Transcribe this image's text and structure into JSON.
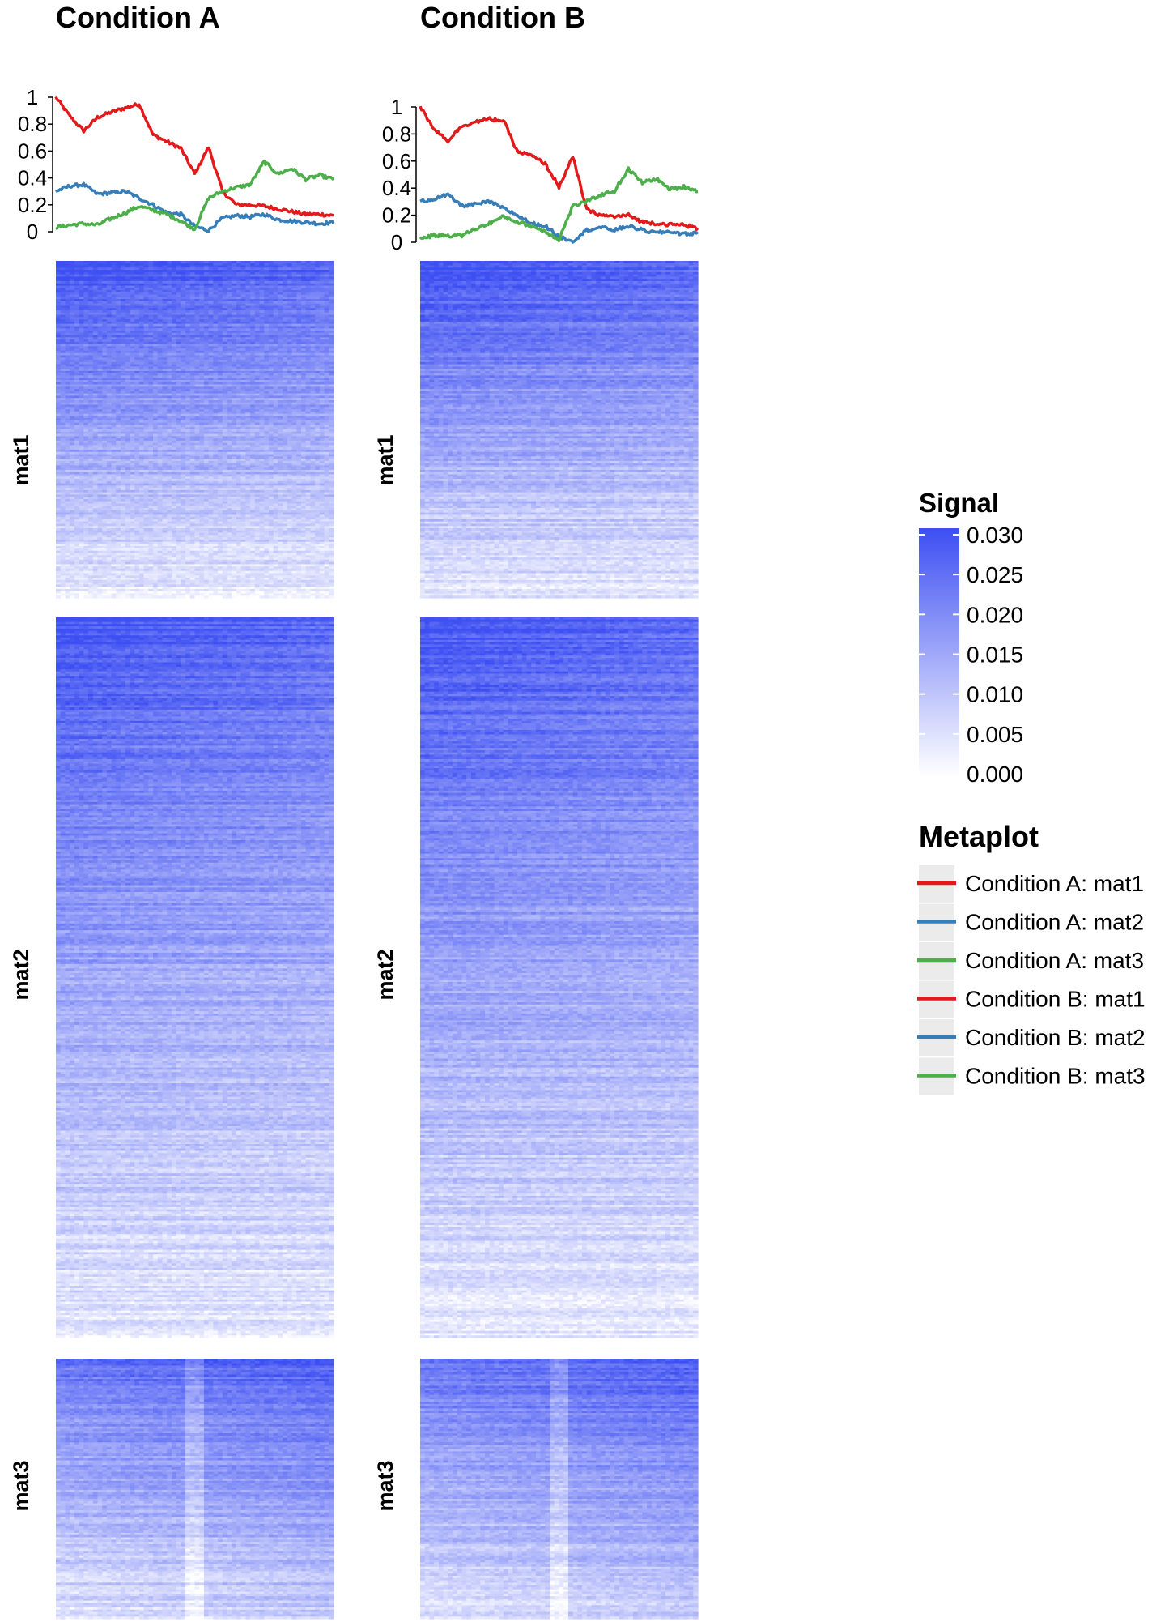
{
  "chart_data": {
    "type": "heatmap",
    "panels": [
      {
        "title": "Condition A",
        "metaplot": {
          "type": "line",
          "y_ticks": [
            "0",
            "0.2",
            "0.4",
            "0.6",
            "0.8",
            "1"
          ],
          "ylim": [
            0,
            1
          ],
          "x": [
            0,
            0.05,
            0.1,
            0.15,
            0.2,
            0.25,
            0.3,
            0.35,
            0.4,
            0.45,
            0.5,
            0.55,
            0.6,
            0.65,
            0.7,
            0.75,
            0.8,
            0.85,
            0.9,
            0.95,
            1
          ],
          "series": [
            {
              "name": "Condition A: mat1",
              "color": "#e31a1c",
              "values": [
                1.0,
                0.86,
                0.75,
                0.85,
                0.89,
                0.92,
                0.95,
                0.72,
                0.67,
                0.62,
                0.43,
                0.63,
                0.3,
                0.2,
                0.2,
                0.19,
                0.17,
                0.15,
                0.13,
                0.13,
                0.12
              ]
            },
            {
              "name": "Condition A: mat2",
              "color": "#377eb8",
              "values": [
                0.3,
                0.34,
                0.35,
                0.28,
                0.29,
                0.3,
                0.25,
                0.2,
                0.14,
                0.13,
                0.04,
                0.01,
                0.1,
                0.12,
                0.11,
                0.13,
                0.09,
                0.08,
                0.07,
                0.06,
                0.07
              ]
            },
            {
              "name": "Condition A: mat3",
              "color": "#4daf4a",
              "values": [
                0.03,
                0.05,
                0.06,
                0.05,
                0.1,
                0.14,
                0.19,
                0.16,
                0.13,
                0.08,
                0.02,
                0.25,
                0.3,
                0.33,
                0.35,
                0.52,
                0.43,
                0.47,
                0.39,
                0.42,
                0.39
              ]
            }
          ]
        },
        "heatmaps": [
          {
            "row_label": "mat1",
            "rows": 150,
            "top_intensity": 0.029,
            "bottom_intensity": 0.004,
            "center_dip": 0
          },
          {
            "row_label": "mat2",
            "rows": 320,
            "top_intensity": 0.028,
            "bottom_intensity": 0.004,
            "center_dip": 0
          },
          {
            "row_label": "mat3",
            "rows": 115,
            "top_intensity": 0.026,
            "bottom_intensity": 0.007,
            "center_dip": 0.006
          }
        ]
      },
      {
        "title": "Condition B",
        "metaplot": {
          "type": "line",
          "y_ticks": [
            "0",
            "0.2",
            "0.4",
            "0.6",
            "0.8",
            "1"
          ],
          "ylim": [
            0,
            1
          ],
          "x": [
            0,
            0.05,
            0.1,
            0.15,
            0.2,
            0.25,
            0.3,
            0.35,
            0.4,
            0.45,
            0.5,
            0.55,
            0.6,
            0.65,
            0.7,
            0.75,
            0.8,
            0.85,
            0.9,
            0.95,
            1
          ],
          "series": [
            {
              "name": "Condition B: mat1",
              "color": "#e31a1c",
              "values": [
                1.0,
                0.84,
                0.75,
                0.86,
                0.89,
                0.91,
                0.9,
                0.67,
                0.64,
                0.58,
                0.41,
                0.63,
                0.24,
                0.2,
                0.19,
                0.2,
                0.15,
                0.14,
                0.13,
                0.13,
                0.1
              ]
            },
            {
              "name": "Condition B: mat2",
              "color": "#377eb8",
              "values": [
                0.3,
                0.32,
                0.35,
                0.27,
                0.28,
                0.3,
                0.25,
                0.2,
                0.14,
                0.12,
                0.04,
                0.01,
                0.09,
                0.11,
                0.09,
                0.12,
                0.09,
                0.07,
                0.08,
                0.06,
                0.07
              ]
            },
            {
              "name": "Condition B: mat3",
              "color": "#4daf4a",
              "values": [
                0.03,
                0.05,
                0.05,
                0.05,
                0.1,
                0.14,
                0.19,
                0.15,
                0.12,
                0.08,
                0.02,
                0.27,
                0.3,
                0.35,
                0.38,
                0.54,
                0.44,
                0.47,
                0.39,
                0.41,
                0.38
              ]
            }
          ]
        },
        "heatmaps": [
          {
            "row_label": "mat1",
            "rows": 150,
            "top_intensity": 0.029,
            "bottom_intensity": 0.004,
            "center_dip": 0
          },
          {
            "row_label": "mat2",
            "rows": 320,
            "top_intensity": 0.028,
            "bottom_intensity": 0.004,
            "center_dip": 0
          },
          {
            "row_label": "mat3",
            "rows": 115,
            "top_intensity": 0.026,
            "bottom_intensity": 0.007,
            "center_dip": 0.006
          }
        ]
      }
    ],
    "color_legend": {
      "title": "Signal",
      "low_color": "#ffffff",
      "high_color": "#3d4ff2",
      "range": [
        0,
        0.03
      ],
      "ticks": [
        "0.030",
        "0.025",
        "0.020",
        "0.015",
        "0.010",
        "0.005",
        "0.000"
      ]
    },
    "line_legend": {
      "title": "Metaplot",
      "entries": [
        {
          "label": "Condition A: mat1",
          "color": "#e31a1c"
        },
        {
          "label": "Condition A: mat2",
          "color": "#377eb8"
        },
        {
          "label": "Condition A: mat3",
          "color": "#4daf4a"
        },
        {
          "label": "Condition B: mat1",
          "color": "#e31a1c"
        },
        {
          "label": "Condition B: mat2",
          "color": "#377eb8"
        },
        {
          "label": "Condition B: mat3",
          "color": "#4daf4a"
        }
      ]
    }
  }
}
